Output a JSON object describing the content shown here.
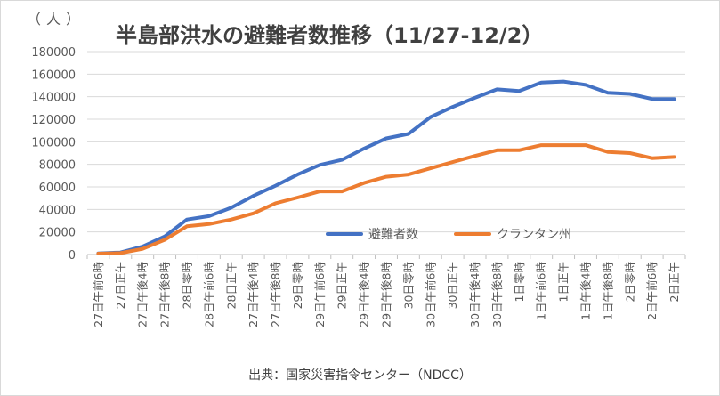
{
  "chart_data": {
    "type": "line",
    "title": "半島部洪水の避難者数推移（11/27-12/2）",
    "unit_label": "（人）",
    "source": "出典：国家災害指令センター（NDCC）",
    "ylim": [
      0,
      180000
    ],
    "yticks": [
      "180000",
      "160000",
      "140000",
      "120000",
      "100000",
      "80000",
      "60000",
      "40000",
      "20000",
      "0"
    ],
    "ytick_values": [
      180000,
      160000,
      140000,
      120000,
      100000,
      80000,
      60000,
      40000,
      20000,
      0
    ],
    "grid": true,
    "legend_position": "inside-bottom-right",
    "categories": [
      "27日午前6時",
      "27日正午",
      "27日午後4時",
      "27日午後8時",
      "28日零時",
      "28日午前6時",
      "28日正午",
      "27日午後4時",
      "27日午後8時",
      "29日零時",
      "29日午前6時",
      "29日正午",
      "29日午後4時",
      "29日午後8時",
      "30日零時",
      "30日午前6時",
      "30日正午",
      "30日午後4時",
      "30日午後8時",
      "1日零時",
      "1日午前6時",
      "1日正午",
      "1日午後4時",
      "1日午後8時",
      "2日零時",
      "2日午前6時",
      "2日正午"
    ],
    "series": [
      {
        "name": "避難者数",
        "color": "#4472C4",
        "values": [
          1000,
          1800,
          7000,
          16000,
          31000,
          34000,
          41500,
          52000,
          61000,
          71000,
          79500,
          84000,
          94000,
          103000,
          107000,
          122000,
          131000,
          139000,
          146500,
          145000,
          152500,
          153500,
          150500,
          143500,
          142500,
          138000,
          138000
        ]
      },
      {
        "name": "クランタン州",
        "color": "#ED7D31",
        "values": [
          800,
          1300,
          5000,
          13000,
          25000,
          27000,
          31000,
          36500,
          45500,
          50500,
          56000,
          56000,
          63500,
          69000,
          71000,
          76500,
          82000,
          87500,
          92500,
          92500,
          97000,
          97000,
          97000,
          91000,
          90000,
          85500,
          86500
        ]
      }
    ]
  },
  "colors": {
    "grid": "#d9d9d9",
    "axis": "#bfbfbf",
    "text": "#595959"
  }
}
